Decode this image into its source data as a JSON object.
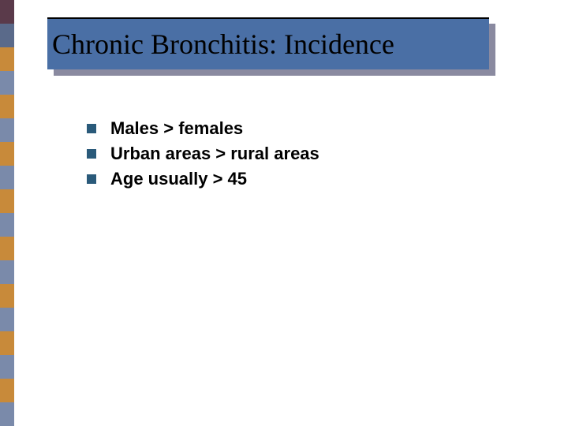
{
  "title": "Chronic Bronchitis: Incidence",
  "title_box_color": "#4a6fa5",
  "title_shadow_color": "#8a8aa0",
  "title_font_family": "Times New Roman",
  "title_font_size": 36,
  "bullets": [
    {
      "text": "Males > females"
    },
    {
      "text": "Urban areas > rural areas"
    },
    {
      "text": "Age usually > 45"
    }
  ],
  "bullet_square_color": "#2a5a7a",
  "bullet_font_size": 22,
  "bullet_font_weight": "bold",
  "stripes": [
    "#5a3a4a",
    "#5a6a8a",
    "#c88a3a",
    "#7a8aaa",
    "#c88a3a",
    "#7a8aaa",
    "#c88a3a",
    "#7a8aaa",
    "#c88a3a",
    "#7a8aaa",
    "#c88a3a",
    "#7a8aaa",
    "#c88a3a",
    "#7a8aaa",
    "#c88a3a",
    "#7a8aaa",
    "#c88a3a",
    "#7a8aaa"
  ],
  "stripe_width": 18,
  "stripe_height": 30
}
